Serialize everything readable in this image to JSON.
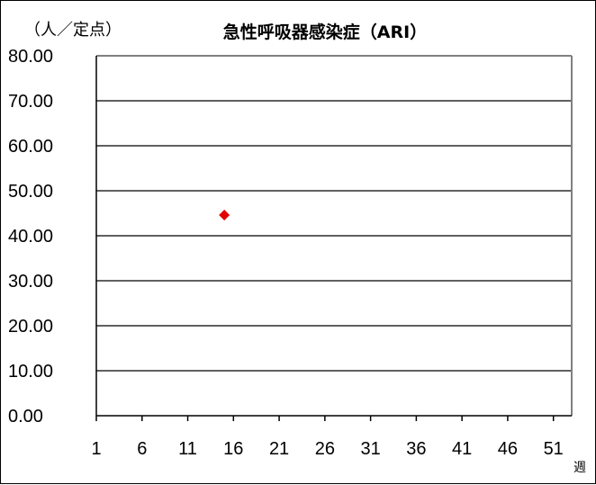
{
  "chart_data": {
    "type": "scatter",
    "title": "急性呼吸器感染症（ARI）",
    "ylabel": "（人／定点）",
    "xlabel": "週",
    "ylim": [
      0,
      80
    ],
    "xlim": [
      1,
      53
    ],
    "y_ticks": [
      "0.00",
      "10.00",
      "20.00",
      "30.00",
      "40.00",
      "50.00",
      "60.00",
      "70.00",
      "80.00"
    ],
    "x_ticks": [
      "1",
      "6",
      "11",
      "16",
      "21",
      "26",
      "31",
      "36",
      "41",
      "46",
      "51"
    ],
    "grid": true,
    "marker_color": "#e00000",
    "series": [
      {
        "points": [
          {
            "x": 15,
            "y": 44.6
          }
        ]
      }
    ]
  }
}
